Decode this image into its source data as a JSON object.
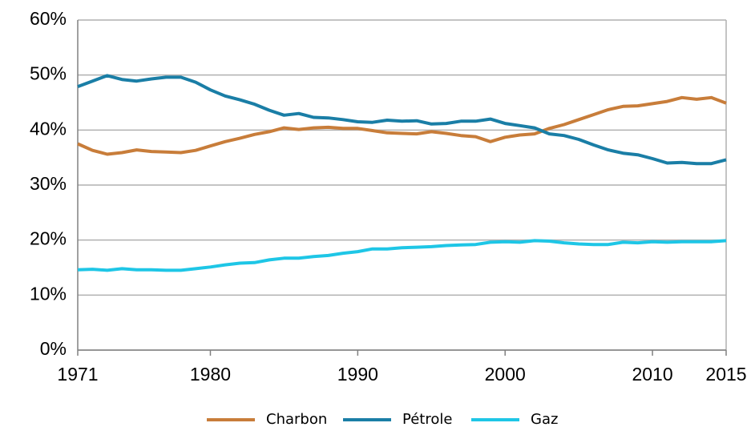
{
  "chart_data": {
    "type": "line",
    "x": [
      1971,
      1972,
      1973,
      1974,
      1975,
      1976,
      1977,
      1978,
      1979,
      1980,
      1981,
      1982,
      1983,
      1984,
      1985,
      1986,
      1987,
      1988,
      1989,
      1990,
      1991,
      1992,
      1993,
      1994,
      1995,
      1996,
      1997,
      1998,
      1999,
      2000,
      2001,
      2002,
      2003,
      2004,
      2005,
      2006,
      2007,
      2008,
      2009,
      2010,
      2011,
      2012,
      2013,
      2014,
      2015
    ],
    "series": [
      {
        "name": "Charbon",
        "color": "#c87d3a",
        "values": [
          37.5,
          36.3,
          35.6,
          35.9,
          36.4,
          36.1,
          36.0,
          35.9,
          36.3,
          37.1,
          37.9,
          38.5,
          39.2,
          39.7,
          40.4,
          40.1,
          40.4,
          40.5,
          40.3,
          40.3,
          39.9,
          39.5,
          39.4,
          39.3,
          39.7,
          39.4,
          39.0,
          38.8,
          37.9,
          38.7,
          39.1,
          39.3,
          40.3,
          41.0,
          41.9,
          42.8,
          43.7,
          44.3,
          44.4,
          44.8,
          45.2,
          45.9,
          45.6,
          45.9,
          44.9
        ]
      },
      {
        "name": "Pétrole",
        "color": "#1a7ea6",
        "values": [
          47.9,
          48.9,
          49.9,
          49.2,
          48.9,
          49.3,
          49.6,
          49.6,
          48.7,
          47.3,
          46.2,
          45.5,
          44.7,
          43.6,
          42.7,
          43.0,
          42.3,
          42.2,
          41.9,
          41.5,
          41.4,
          41.8,
          41.6,
          41.7,
          41.1,
          41.2,
          41.6,
          41.6,
          42.0,
          41.2,
          40.8,
          40.4,
          39.3,
          39.0,
          38.3,
          37.3,
          36.4,
          35.8,
          35.5,
          34.8,
          34.0,
          34.1,
          33.9,
          33.9,
          34.6
        ]
      },
      {
        "name": "Gaz",
        "color": "#1ec6e6",
        "values": [
          14.6,
          14.7,
          14.5,
          14.8,
          14.6,
          14.6,
          14.5,
          14.5,
          14.8,
          15.1,
          15.5,
          15.8,
          15.9,
          16.4,
          16.7,
          16.7,
          17.0,
          17.2,
          17.6,
          17.9,
          18.4,
          18.4,
          18.6,
          18.7,
          18.8,
          19.0,
          19.1,
          19.2,
          19.6,
          19.7,
          19.6,
          19.9,
          19.8,
          19.5,
          19.3,
          19.2,
          19.2,
          19.6,
          19.5,
          19.7,
          19.6,
          19.7,
          19.7,
          19.7,
          19.9
        ]
      }
    ],
    "xlim": [
      1971,
      2015
    ],
    "xticks": [
      1971,
      1980,
      1990,
      2000,
      2010,
      2015
    ],
    "ylim": [
      0,
      60
    ],
    "yticks": [
      {
        "value": 0,
        "label": "0%"
      },
      {
        "value": 10,
        "label": "10%"
      },
      {
        "value": 20,
        "label": "20%"
      },
      {
        "value": 30,
        "label": "30%"
      },
      {
        "value": 40,
        "label": "40%"
      },
      {
        "value": 50,
        "label": "50%"
      },
      {
        "value": 60,
        "label": "60%"
      }
    ],
    "grid": true,
    "legend": "bottom"
  }
}
